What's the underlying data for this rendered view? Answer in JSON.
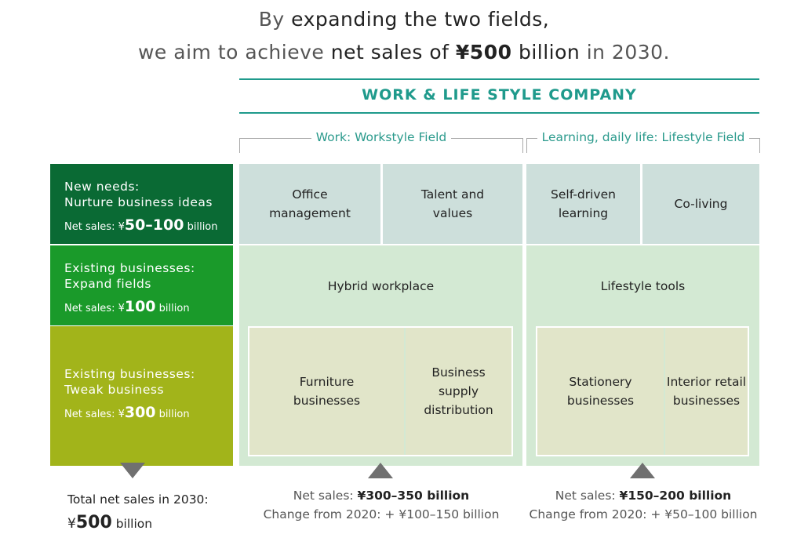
{
  "headline": {
    "line1_pre": "By ",
    "line1_em": "expanding the two fields,",
    "line2_pre": "we aim to achieve ",
    "line2_em": "net sales of ",
    "line2_amount": "¥500",
    "line2_unit": " billion",
    "line2_post": " in 2030."
  },
  "company": {
    "title": "WORK & LIFE STYLE COMPANY"
  },
  "fields": {
    "work": "Work: Workstyle Field",
    "lifestyle": "Learning, daily life: Lifestyle Field"
  },
  "rows": {
    "new_needs": {
      "line1": "New needs:",
      "line2": "Nurture business ideas",
      "sales_prefix": "Net sales: ¥",
      "sales_amount": "50–100",
      "sales_unit": " billion",
      "color": "#0a6a34"
    },
    "expand": {
      "line1": "Existing businesses:",
      "line2": "Expand fields",
      "sales_prefix": "Net sales: ¥",
      "sales_amount": "100",
      "sales_unit": " billion",
      "color": "#1a9a2a"
    },
    "tweak": {
      "line1": "Existing businesses:",
      "line2": "Tweak business",
      "sales_prefix": "Net sales: ¥",
      "sales_amount": "300",
      "sales_unit": " billion",
      "color": "#a2b41a"
    }
  },
  "cells": {
    "office_management": [
      "Office",
      "management"
    ],
    "talent_values": [
      "Talent and",
      "values"
    ],
    "self_driven": [
      "Self-driven",
      "learning"
    ],
    "co_living": [
      "Co-living"
    ],
    "hybrid_workplace": "Hybrid workplace",
    "lifestyle_tools": "Lifestyle tools",
    "furniture": [
      "Furniture",
      "businesses"
    ],
    "business_supply": [
      "Business",
      "supply",
      "distribution"
    ],
    "stationery": [
      "Stationery",
      "businesses"
    ],
    "interior_retail": [
      "Interior retail",
      "businesses"
    ]
  },
  "bottom": {
    "total_line1": "Total net sales in 2030:",
    "total_yen": "¥",
    "total_amount": "500",
    "total_unit": " billion",
    "work_sales_prefix": "Net sales: ",
    "work_sales_amount": "¥300–350 billion",
    "work_change": "Change from 2020: + ¥100–150 billion",
    "life_sales_prefix": "Net sales: ",
    "life_sales_amount": "¥150–200 billion",
    "life_change": "Change from 2020: + ¥50–100 billion"
  }
}
